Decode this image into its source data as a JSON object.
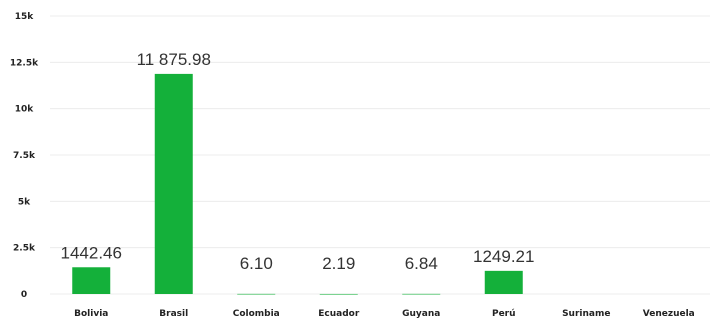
{
  "chart_data": {
    "type": "bar",
    "categories": [
      "Bolivia",
      "Brasil",
      "Colombia",
      "Ecuador",
      "Guyana",
      "Perú",
      "Suriname",
      "Venezuela"
    ],
    "values": [
      1442.46,
      11875.98,
      6.1,
      2.19,
      6.84,
      1249.21,
      null,
      null
    ],
    "data_labels": [
      "1442.46",
      "11 875.98",
      "6.10",
      "2.19",
      "6.84",
      "1249.21",
      "",
      ""
    ],
    "yticks": [
      {
        "value": 0,
        "label": "0"
      },
      {
        "value": 2500,
        "label": "2.5k"
      },
      {
        "value": 5000,
        "label": "5k"
      },
      {
        "value": 7500,
        "label": "7.5k"
      },
      {
        "value": 10000,
        "label": "10k"
      },
      {
        "value": 12500,
        "label": "12.5k"
      },
      {
        "value": 15000,
        "label": "15k"
      }
    ],
    "ylim": [
      0,
      15000
    ],
    "grid": true,
    "bar_color": "#14b03a",
    "title": "",
    "xlabel": "",
    "ylabel": ""
  }
}
